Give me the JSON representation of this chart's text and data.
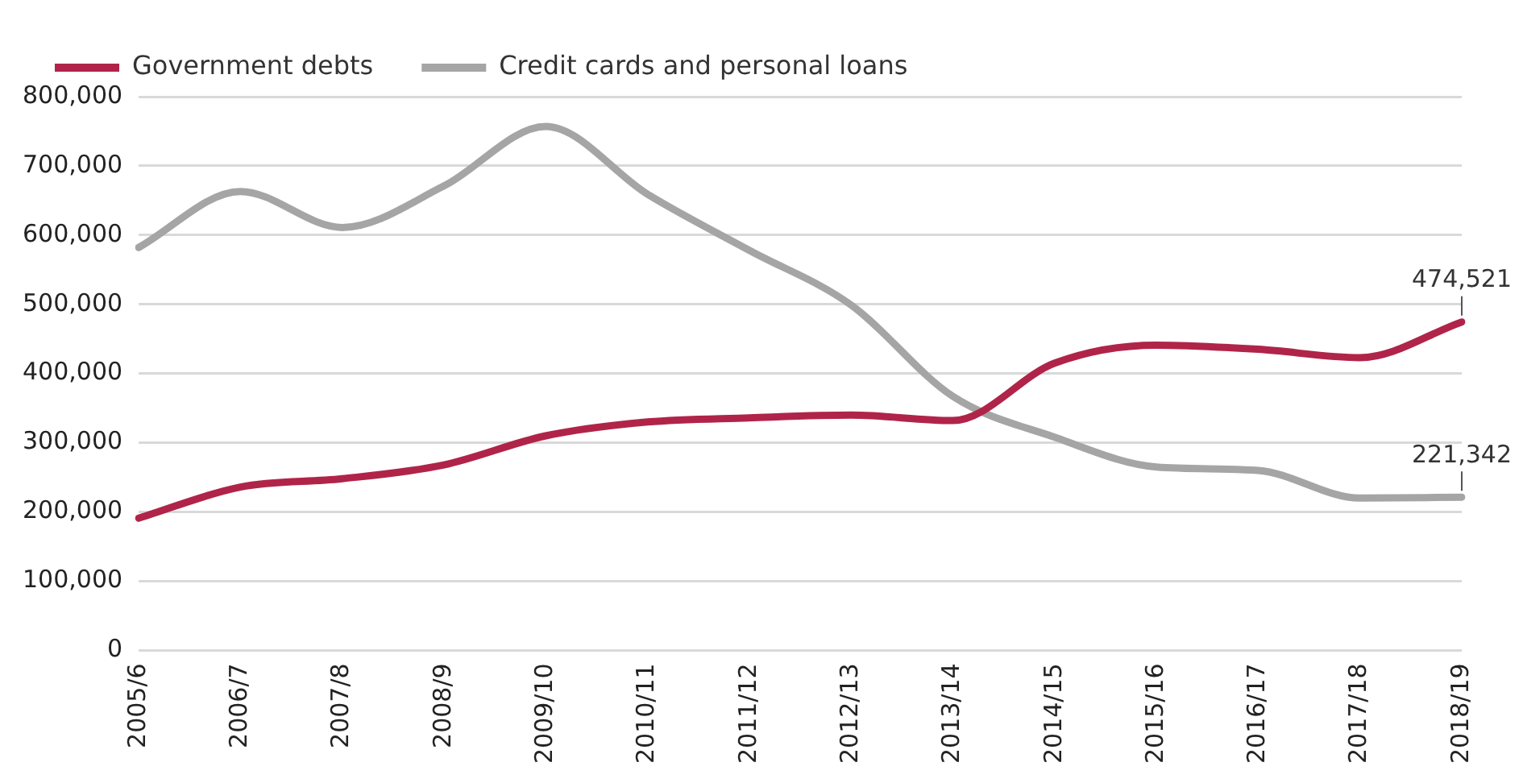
{
  "chart_data": {
    "type": "line",
    "categories": [
      "2005/6",
      "2006/7",
      "2007/8",
      "2008/9",
      "2009/10",
      "2010/11",
      "2011/12",
      "2012/13",
      "2013/14",
      "2014/15",
      "2015/16",
      "2016/17",
      "2017/18",
      "2018/19"
    ],
    "series": [
      {
        "name": "Government debts",
        "color": "#b0244a",
        "values": [
          191000,
          236000,
          248000,
          268000,
          310000,
          330000,
          336000,
          340000,
          332000,
          415000,
          441000,
          435000,
          423000,
          474521
        ],
        "value_labels": [
          null,
          null,
          null,
          null,
          null,
          null,
          null,
          null,
          null,
          null,
          null,
          null,
          null,
          "474,521"
        ]
      },
      {
        "name": "Credit cards and personal loans",
        "color": "#a5a5a5",
        "values": [
          582000,
          663000,
          611000,
          671000,
          757000,
          659000,
          578000,
          499000,
          367000,
          308000,
          265000,
          260000,
          220000,
          221342
        ],
        "value_labels": [
          null,
          null,
          null,
          null,
          null,
          null,
          null,
          null,
          null,
          null,
          null,
          null,
          null,
          "221,342"
        ]
      }
    ],
    "ylim": [
      0,
      800000
    ],
    "yticks": [
      {
        "value": 0,
        "label": "0"
      },
      {
        "value": 100000,
        "label": "100,000"
      },
      {
        "value": 200000,
        "label": "200,000"
      },
      {
        "value": 300000,
        "label": "300,000"
      },
      {
        "value": 400000,
        "label": "400,000"
      },
      {
        "value": 500000,
        "label": "500,000"
      },
      {
        "value": 600000,
        "label": "600,000"
      },
      {
        "value": 700000,
        "label": "700,000"
      },
      {
        "value": 800000,
        "label": "800,000"
      }
    ],
    "grid": "y",
    "legend": "top left",
    "marker": "none",
    "line_style": "solid"
  }
}
